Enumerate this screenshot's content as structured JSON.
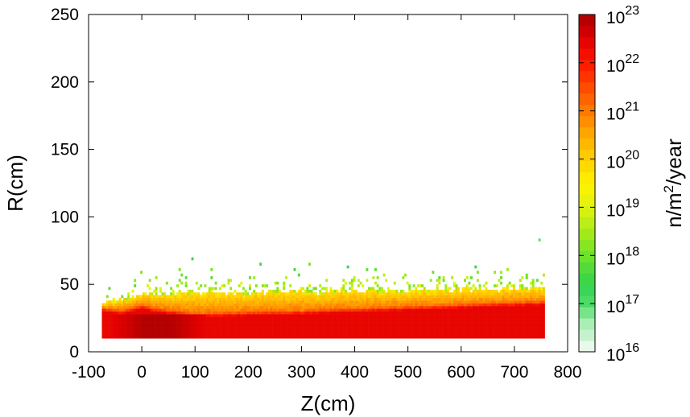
{
  "chart_data": {
    "type": "heatmap",
    "xlabel": "Z(cm)",
    "ylabel": "R(cm)",
    "xlim": [
      -100,
      800
    ],
    "ylim": [
      0,
      250
    ],
    "x_ticks": [
      "-100",
      "0",
      "100",
      "200",
      "300",
      "400",
      "500",
      "600",
      "700",
      "800"
    ],
    "y_ticks": [
      "0",
      "50",
      "100",
      "150",
      "200",
      "250"
    ],
    "colorbar": {
      "label_parts": [
        "n/m",
        "2",
        "/year"
      ],
      "scale": "log",
      "range_exp": [
        16,
        23
      ],
      "ticks": [
        {
          "base": "10",
          "exp": "16"
        },
        {
          "base": "10",
          "exp": "17"
        },
        {
          "base": "10",
          "exp": "18"
        },
        {
          "base": "10",
          "exp": "19"
        },
        {
          "base": "10",
          "exp": "20"
        },
        {
          "base": "10",
          "exp": "21"
        },
        {
          "base": "10",
          "exp": "22"
        },
        {
          "base": "10",
          "exp": "23"
        }
      ],
      "stops": [
        [
          16.0,
          "#ffffff"
        ],
        [
          16.2,
          "#d8f5dc"
        ],
        [
          16.6,
          "#a6eeb3"
        ],
        [
          17.0,
          "#4fdc6a"
        ],
        [
          17.4,
          "#33d24e"
        ],
        [
          18.0,
          "#6ee22a"
        ],
        [
          18.5,
          "#a6eb1a"
        ],
        [
          19.0,
          "#dff20e"
        ],
        [
          19.5,
          "#fff200"
        ],
        [
          20.0,
          "#ffd000"
        ],
        [
          20.5,
          "#ffaa00"
        ],
        [
          21.0,
          "#ff7a00"
        ],
        [
          21.5,
          "#ff4a00"
        ],
        [
          22.0,
          "#ff1800"
        ],
        [
          22.5,
          "#e20000"
        ],
        [
          23.0,
          "#a80000"
        ]
      ]
    },
    "flux_map": {
      "z_range": [
        -75,
        757
      ],
      "r_inner_cm": 10,
      "red_upper_cm": [
        [
          -75,
          33
        ],
        [
          -40,
          31
        ],
        [
          0,
          35
        ],
        [
          20,
          33
        ],
        [
          100,
          29
        ],
        [
          300,
          31
        ],
        [
          500,
          34
        ],
        [
          757,
          38
        ]
      ],
      "yellow_upper_cm": [
        [
          -75,
          36
        ],
        [
          -40,
          38
        ],
        [
          0,
          42
        ],
        [
          100,
          43
        ],
        [
          300,
          44
        ],
        [
          500,
          45
        ],
        [
          757,
          47
        ]
      ],
      "dark_core": {
        "z_center_cm": 30,
        "z_halfwidth_cm": 90,
        "r_top_cm": 28,
        "log_flux": 22.9
      },
      "log_flux_red": 22.4,
      "log_flux_orange": 21.0,
      "log_flux_yellow": 19.8,
      "sparse_fringe_max_r_cm": 90
    }
  }
}
